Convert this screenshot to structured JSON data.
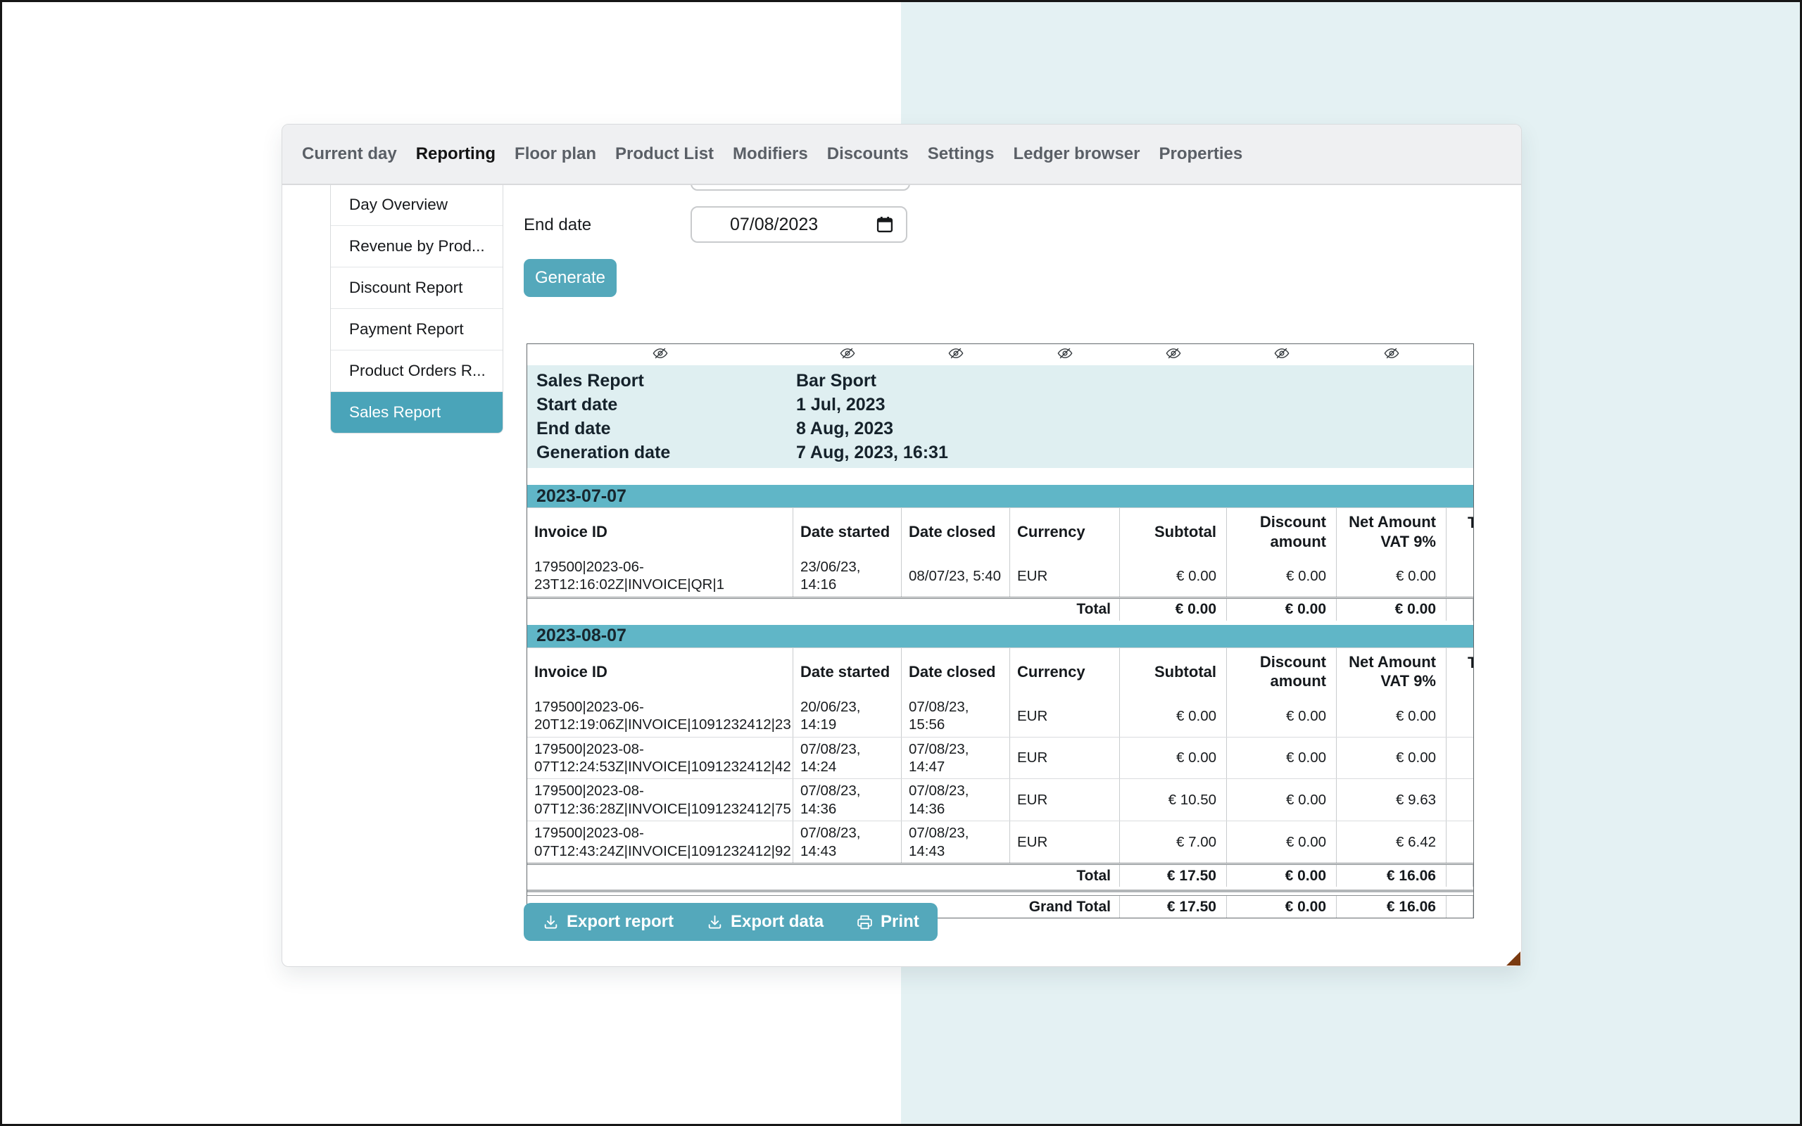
{
  "nav": {
    "items": [
      {
        "label": "Current day",
        "active": false
      },
      {
        "label": "Reporting",
        "active": true
      },
      {
        "label": "Floor plan",
        "active": false
      },
      {
        "label": "Product List",
        "active": false
      },
      {
        "label": "Modifiers",
        "active": false
      },
      {
        "label": "Discounts",
        "active": false
      },
      {
        "label": "Settings",
        "active": false
      },
      {
        "label": "Ledger browser",
        "active": false
      },
      {
        "label": "Properties",
        "active": false
      }
    ]
  },
  "sidebar": {
    "items": [
      {
        "label": "Day Overview",
        "selected": false
      },
      {
        "label": "Revenue by Prod...",
        "selected": false
      },
      {
        "label": "Discount Report",
        "selected": false
      },
      {
        "label": "Payment Report",
        "selected": false
      },
      {
        "label": "Product Orders R...",
        "selected": false
      },
      {
        "label": "Sales Report",
        "selected": true
      }
    ]
  },
  "filters": {
    "end_date_label": "End date",
    "end_date_value": "07/08/2023",
    "generate_label": "Generate"
  },
  "report": {
    "meta": [
      {
        "label": "Sales Report",
        "value": "Bar Sport"
      },
      {
        "label": "Start date",
        "value": "1 Jul, 2023"
      },
      {
        "label": "End date",
        "value": "8 Aug, 2023"
      },
      {
        "label": "Generation date",
        "value": "7 Aug, 2023, 16:31"
      }
    ],
    "columns": [
      "Invoice ID",
      "Date started",
      "Date closed",
      "Currency",
      "Subtotal",
      "Discount amount",
      "Net Amount VAT 9%"
    ],
    "clipped_header": "T",
    "sections": [
      {
        "date": "2023-07-07",
        "rows": [
          {
            "invoice": "179500|2023-06-\n23T12:16:02Z|INVOICE|QR|1",
            "started": "23/06/23,\n14:16",
            "closed": "08/07/23, 5:40",
            "currency": "EUR",
            "subtotal": "€ 0.00",
            "discount": "€ 0.00",
            "net": "€ 0.00"
          }
        ],
        "total": {
          "label": "Total",
          "subtotal": "€ 0.00",
          "discount": "€ 0.00",
          "net": "€ 0.00"
        }
      },
      {
        "date": "2023-08-07",
        "rows": [
          {
            "invoice": "179500|2023-06-\n20T12:19:06Z|INVOICE|1091232412|23",
            "started": "20/06/23,\n14:19",
            "closed": "07/08/23,\n15:56",
            "currency": "EUR",
            "subtotal": "€ 0.00",
            "discount": "€ 0.00",
            "net": "€ 0.00"
          },
          {
            "invoice": "179500|2023-08-\n07T12:24:53Z|INVOICE|1091232412|42",
            "started": "07/08/23,\n14:24",
            "closed": "07/08/23,\n14:47",
            "currency": "EUR",
            "subtotal": "€ 0.00",
            "discount": "€ 0.00",
            "net": "€ 0.00"
          },
          {
            "invoice": "179500|2023-08-\n07T12:36:28Z|INVOICE|1091232412|75",
            "started": "07/08/23,\n14:36",
            "closed": "07/08/23,\n14:36",
            "currency": "EUR",
            "subtotal": "€ 10.50",
            "discount": "€ 0.00",
            "net": "€ 9.63"
          },
          {
            "invoice": "179500|2023-08-\n07T12:43:24Z|INVOICE|1091232412|92",
            "started": "07/08/23,\n14:43",
            "closed": "07/08/23,\n14:43",
            "currency": "EUR",
            "subtotal": "€ 7.00",
            "discount": "€ 0.00",
            "net": "€ 6.42"
          }
        ],
        "total": {
          "label": "Total",
          "subtotal": "€ 17.50",
          "discount": "€ 0.00",
          "net": "€ 16.06"
        }
      }
    ],
    "grand_total": {
      "label": "Grand Total",
      "subtotal": "€ 17.50",
      "discount": "€ 0.00",
      "net": "€ 16.06"
    }
  },
  "actions": {
    "export_report_label": "Export report",
    "export_data_label": "Export data",
    "print_label": "Print"
  },
  "colors": {
    "accent_teal": "#54a8bb",
    "selected_teal": "#4aa4b9",
    "band_teal": "#60b6c7",
    "meta_bg": "#dfeff1",
    "page_bg_right": "#e4f1f3",
    "nav_bg": "#eff0f2",
    "corner_brown": "#7a3a10"
  }
}
